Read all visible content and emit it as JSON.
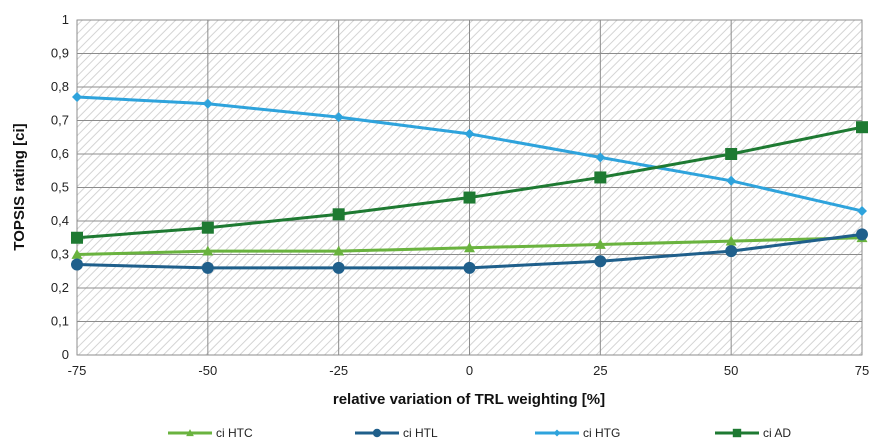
{
  "chart_data": {
    "type": "line",
    "title": "",
    "xlabel": "relative variation of TRL weighting [%]",
    "ylabel": "TOPSIS rating [ci]",
    "x": [
      -75,
      -50,
      -25,
      0,
      25,
      50,
      75
    ],
    "x_tick_labels": [
      "-75",
      "-50",
      "-25",
      "0",
      "25",
      "50",
      "75"
    ],
    "y_tick_labels": [
      "0",
      "0,1",
      "0,2",
      "0,3",
      "0,4",
      "0,5",
      "0,6",
      "0,7",
      "0,8",
      "0,9",
      "1"
    ],
    "xlim": [
      -75,
      75
    ],
    "ylim": [
      0,
      1
    ],
    "grid": true,
    "plot_background": "hatched",
    "legend_position": "bottom",
    "series": [
      {
        "name": "ci HTC",
        "values": [
          0.3,
          0.31,
          0.31,
          0.32,
          0.33,
          0.34,
          0.35
        ],
        "color": "#6ab33f",
        "marker": "triangle"
      },
      {
        "name": "ci HTL",
        "values": [
          0.27,
          0.26,
          0.26,
          0.26,
          0.28,
          0.31,
          0.36
        ],
        "color": "#1f5f8b",
        "marker": "circle"
      },
      {
        "name": "ci HTG",
        "values": [
          0.77,
          0.75,
          0.71,
          0.66,
          0.59,
          0.52,
          0.43
        ],
        "color": "#2ea3dc",
        "marker": "diamond"
      },
      {
        "name": "ci AD",
        "values": [
          0.35,
          0.38,
          0.42,
          0.47,
          0.53,
          0.6,
          0.68
        ],
        "color": "#1e7a32",
        "marker": "square"
      }
    ]
  }
}
